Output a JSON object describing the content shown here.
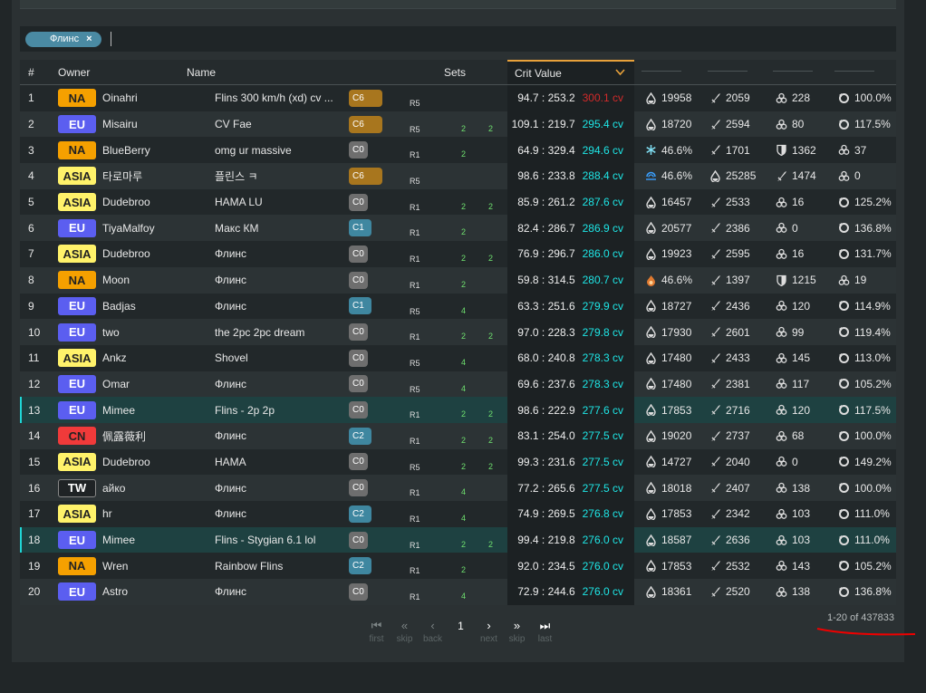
{
  "filter": {
    "chip": "Флинс",
    "remove": "×"
  },
  "headers": {
    "num": "#",
    "owner": "Owner",
    "name": "Name",
    "sets": "Sets",
    "crit": "Crit Value",
    "sort_icon": "chevron-down-icon"
  },
  "colors": {
    "accent": "#e8a13a",
    "cv": "#1ee6e6",
    "cv_top": "#d22a2a",
    "set": "#6fe06f",
    "regions": {
      "NA": "#f5a000",
      "EU": "#5b5ef0",
      "ASIA": "#fff26a",
      "CN": "#f03a3a",
      "TW": "#1f2325"
    },
    "cons": {
      "C6": "#a8761e",
      "C0": "#6e6e6e",
      "C1": "#3f87a0",
      "C2": "#3f87a0"
    }
  },
  "rows": [
    {
      "num": "1",
      "region": "NA",
      "owner": "Oinahri",
      "name": "Flins 300 km/h (xd) cv ...",
      "cons": "C6",
      "ref": "R5",
      "set1": "",
      "set2": "",
      "ratio": "94.7 : 253.2",
      "cv": "300.1 cv",
      "stats": [
        [
          "hp",
          "19958"
        ],
        [
          "atk",
          "2059"
        ],
        [
          "em",
          "228"
        ],
        [
          "er",
          "100.0%"
        ]
      ]
    },
    {
      "num": "2",
      "region": "EU",
      "owner": "Misairu",
      "name": "CV Fae",
      "cons": "C6",
      "ref": "R5",
      "set1": "2",
      "set2": "2",
      "ratio": "109.1 : 219.7",
      "cv": "295.4 cv",
      "stats": [
        [
          "hp",
          "18720"
        ],
        [
          "atk",
          "2594"
        ],
        [
          "em",
          "80"
        ],
        [
          "er",
          "117.5%"
        ]
      ]
    },
    {
      "num": "3",
      "region": "NA",
      "owner": "BlueBerry",
      "name": "omg ur massive",
      "cons": "C0",
      "ref": "R1",
      "set1": "2",
      "set2": "",
      "ratio": "64.9 : 329.4",
      "cv": "294.6 cv",
      "stats": [
        [
          "cryo",
          "46.6%"
        ],
        [
          "atk",
          "1701"
        ],
        [
          "def",
          "1362"
        ],
        [
          "em",
          "37"
        ]
      ]
    },
    {
      "num": "4",
      "region": "ASIA",
      "owner": "타로마루",
      "name": "플린스 ㅋ",
      "cons": "C6",
      "ref": "R5",
      "set1": "",
      "set2": "",
      "ratio": "98.6 : 233.8",
      "cv": "288.4 cv",
      "stats": [
        [
          "hydro",
          "46.6%"
        ],
        [
          "hp",
          "25285"
        ],
        [
          "atk",
          "1474"
        ],
        [
          "em",
          "0"
        ]
      ]
    },
    {
      "num": "5",
      "region": "ASIA",
      "owner": "Dudebroo",
      "name": "HAMA LU",
      "cons": "C0",
      "ref": "R1",
      "set1": "2",
      "set2": "2",
      "ratio": "85.9 : 261.2",
      "cv": "287.6 cv",
      "stats": [
        [
          "hp",
          "16457"
        ],
        [
          "atk",
          "2533"
        ],
        [
          "em",
          "16"
        ],
        [
          "er",
          "125.2%"
        ]
      ]
    },
    {
      "num": "6",
      "region": "EU",
      "owner": "TiyaMalfoy",
      "name": "Макс КМ",
      "cons": "C1",
      "ref": "R1",
      "set1": "2",
      "set2": "",
      "ratio": "82.4 : 286.7",
      "cv": "286.9 cv",
      "stats": [
        [
          "hp",
          "20577"
        ],
        [
          "atk",
          "2386"
        ],
        [
          "em",
          "0"
        ],
        [
          "er",
          "136.8%"
        ]
      ]
    },
    {
      "num": "7",
      "region": "ASIA",
      "owner": "Dudebroo",
      "name": "Флинс",
      "cons": "C0",
      "ref": "R1",
      "set1": "2",
      "set2": "2",
      "ratio": "76.9 : 296.7",
      "cv": "286.0 cv",
      "stats": [
        [
          "hp",
          "19923"
        ],
        [
          "atk",
          "2595"
        ],
        [
          "em",
          "16"
        ],
        [
          "er",
          "131.7%"
        ]
      ]
    },
    {
      "num": "8",
      "region": "NA",
      "owner": "Moon",
      "name": "Флинс",
      "cons": "C0",
      "ref": "R1",
      "set1": "2",
      "set2": "",
      "ratio": "59.8 : 314.5",
      "cv": "280.7 cv",
      "stats": [
        [
          "pyro",
          "46.6%"
        ],
        [
          "atk",
          "1397"
        ],
        [
          "def",
          "1215"
        ],
        [
          "em",
          "19"
        ]
      ]
    },
    {
      "num": "9",
      "region": "EU",
      "owner": "Badjas",
      "name": "Флинс",
      "cons": "C1",
      "ref": "R5",
      "set1": "4",
      "set2": "",
      "ratio": "63.3 : 251.6",
      "cv": "279.9 cv",
      "stats": [
        [
          "hp",
          "18727"
        ],
        [
          "atk",
          "2436"
        ],
        [
          "em",
          "120"
        ],
        [
          "er",
          "114.9%"
        ]
      ]
    },
    {
      "num": "10",
      "region": "EU",
      "owner": "two",
      "name": "the 2pc 2pc dream",
      "cons": "C0",
      "ref": "R1",
      "set1": "2",
      "set2": "2",
      "ratio": "97.0 : 228.3",
      "cv": "279.8 cv",
      "stats": [
        [
          "hp",
          "17930"
        ],
        [
          "atk",
          "2601"
        ],
        [
          "em",
          "99"
        ],
        [
          "er",
          "119.4%"
        ]
      ]
    },
    {
      "num": "11",
      "region": "ASIA",
      "owner": "Ankz",
      "name": "Shovel",
      "cons": "C0",
      "ref": "R5",
      "set1": "4",
      "set2": "",
      "ratio": "68.0 : 240.8",
      "cv": "278.3 cv",
      "stats": [
        [
          "hp",
          "17480"
        ],
        [
          "atk",
          "2433"
        ],
        [
          "em",
          "145"
        ],
        [
          "er",
          "113.0%"
        ]
      ]
    },
    {
      "num": "12",
      "region": "EU",
      "owner": "Omar",
      "name": "Флинс",
      "cons": "C0",
      "ref": "R5",
      "set1": "4",
      "set2": "",
      "ratio": "69.6 : 237.6",
      "cv": "278.3 cv",
      "stats": [
        [
          "hp",
          "17480"
        ],
        [
          "atk",
          "2381"
        ],
        [
          "em",
          "117"
        ],
        [
          "er",
          "105.2%"
        ]
      ]
    },
    {
      "num": "13",
      "region": "EU",
      "owner": "Mimee",
      "name": "Flins - 2p 2p",
      "cons": "C0",
      "ref": "R1",
      "set1": "2",
      "set2": "2",
      "ratio": "98.6 : 222.9",
      "cv": "277.6 cv",
      "highlight": true,
      "stats": [
        [
          "hp",
          "17853"
        ],
        [
          "atk",
          "2716"
        ],
        [
          "em",
          "120"
        ],
        [
          "er",
          "117.5%"
        ]
      ]
    },
    {
      "num": "14",
      "region": "CN",
      "owner": "佩露薇利",
      "name": "Флинс",
      "cons": "C2",
      "ref": "R1",
      "set1": "2",
      "set2": "2",
      "ratio": "83.1 : 254.0",
      "cv": "277.5 cv",
      "stats": [
        [
          "hp",
          "19020"
        ],
        [
          "atk",
          "2737"
        ],
        [
          "em",
          "68"
        ],
        [
          "er",
          "100.0%"
        ]
      ]
    },
    {
      "num": "15",
      "region": "ASIA",
      "owner": "Dudebroo",
      "name": "HAMA",
      "cons": "C0",
      "ref": "R5",
      "set1": "2",
      "set2": "2",
      "ratio": "99.3 : 231.6",
      "cv": "277.5 cv",
      "stats": [
        [
          "hp",
          "14727"
        ],
        [
          "atk",
          "2040"
        ],
        [
          "em",
          "0"
        ],
        [
          "er",
          "149.2%"
        ]
      ]
    },
    {
      "num": "16",
      "region": "TW",
      "owner": "айко",
      "name": "Флинс",
      "cons": "C0",
      "ref": "R1",
      "set1": "4",
      "set2": "",
      "ratio": "77.2 : 265.6",
      "cv": "277.5 cv",
      "stats": [
        [
          "hp",
          "18018"
        ],
        [
          "atk",
          "2407"
        ],
        [
          "em",
          "138"
        ],
        [
          "er",
          "100.0%"
        ]
      ]
    },
    {
      "num": "17",
      "region": "ASIA",
      "owner": "hr",
      "name": "Флинс",
      "cons": "C2",
      "ref": "R1",
      "set1": "4",
      "set2": "",
      "ratio": "74.9 : 269.5",
      "cv": "276.8 cv",
      "stats": [
        [
          "hp",
          "17853"
        ],
        [
          "atk",
          "2342"
        ],
        [
          "em",
          "103"
        ],
        [
          "er",
          "111.0%"
        ]
      ]
    },
    {
      "num": "18",
      "region": "EU",
      "owner": "Mimee",
      "name": "Flins - Stygian 6.1 lol",
      "cons": "C0",
      "ref": "R1",
      "set1": "2",
      "set2": "2",
      "ratio": "99.4 : 219.8",
      "cv": "276.0 cv",
      "highlight": true,
      "stats": [
        [
          "hp",
          "18587"
        ],
        [
          "atk",
          "2636"
        ],
        [
          "em",
          "103"
        ],
        [
          "er",
          "111.0%"
        ]
      ]
    },
    {
      "num": "19",
      "region": "NA",
      "owner": "Wren",
      "name": "Rainbow Flins",
      "cons": "C2",
      "ref": "R1",
      "set1": "2",
      "set2": "",
      "ratio": "92.0 : 234.5",
      "cv": "276.0 cv",
      "stats": [
        [
          "hp",
          "17853"
        ],
        [
          "atk",
          "2532"
        ],
        [
          "em",
          "143"
        ],
        [
          "er",
          "105.2%"
        ]
      ]
    },
    {
      "num": "20",
      "region": "EU",
      "owner": "Astro",
      "name": "Флинс",
      "cons": "C0",
      "ref": "R1",
      "set1": "4",
      "set2": "",
      "ratio": "72.9 : 244.6",
      "cv": "276.0 cv",
      "stats": [
        [
          "hp",
          "18361"
        ],
        [
          "atk",
          "2520"
        ],
        [
          "em",
          "138"
        ],
        [
          "er",
          "136.8%"
        ]
      ]
    }
  ],
  "pager": {
    "first": "first",
    "skip_back": "skip",
    "back": "back",
    "page": "1",
    "next": "next",
    "skip_fwd": "skip",
    "last": "last",
    "count": "1-20 of 437833"
  }
}
